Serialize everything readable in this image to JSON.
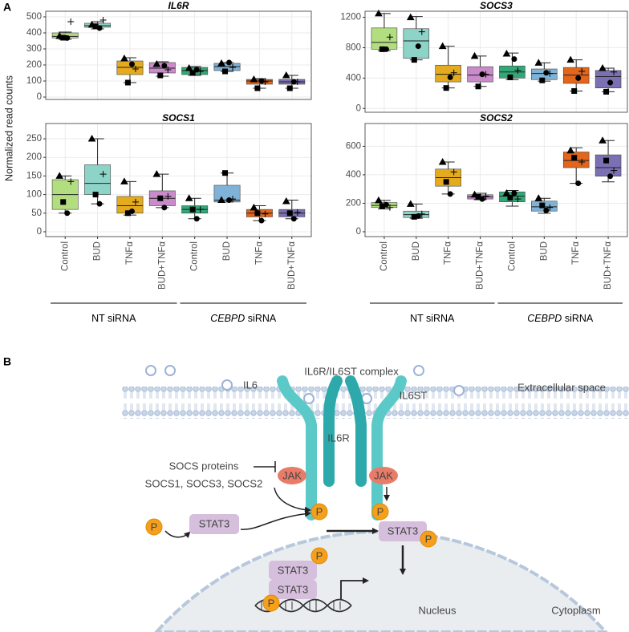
{
  "panel_a": {
    "label": "A",
    "y_label": "Normalized read counts"
  },
  "chart_data": [
    {
      "type": "box",
      "title": "IL6R",
      "ylim": [
        -15,
        535
      ],
      "yticks": [
        0,
        100,
        200,
        300,
        400,
        500
      ],
      "grid": true,
      "point_shapes": [
        "triangle",
        "square",
        "circle",
        "plus"
      ],
      "boxes": [
        {
          "color": "#b3de7f",
          "min": 360,
          "q1": 368,
          "median": 378,
          "q3": 400,
          "max": 405,
          "points": [
            380,
            370,
            368,
            470
          ]
        },
        {
          "color": "#8ed3c7",
          "min": 425,
          "q1": 435,
          "median": 445,
          "q3": 460,
          "max": 470,
          "points": [
            450,
            440,
            430,
            480
          ]
        },
        {
          "color": "#e5ab1f",
          "min": 90,
          "q1": 140,
          "median": 185,
          "q3": 225,
          "max": 245,
          "points": [
            240,
            90,
            205,
            175
          ]
        },
        {
          "color": "#c98bc9",
          "min": 130,
          "q1": 150,
          "median": 180,
          "q3": 215,
          "max": 220,
          "points": [
            205,
            135,
            195,
            170
          ]
        },
        {
          "color": "#32a878",
          "min": 135,
          "q1": 140,
          "median": 165,
          "q3": 185,
          "max": 190,
          "points": [
            180,
            150,
            170,
            160
          ]
        },
        {
          "color": "#7fb2d6",
          "min": 160,
          "q1": 165,
          "median": 190,
          "q3": 210,
          "max": 215,
          "points": [
            210,
            160,
            215,
            185
          ]
        },
        {
          "color": "#e3661c",
          "min": 55,
          "q1": 80,
          "median": 100,
          "q3": 110,
          "max": 115,
          "points": [
            110,
            55,
            100,
            95
          ]
        },
        {
          "color": "#7c70b4",
          "min": 55,
          "q1": 80,
          "median": 95,
          "q3": 110,
          "max": 135,
          "points": [
            135,
            55,
            95,
            95
          ]
        }
      ]
    },
    {
      "type": "box",
      "title": "SOCS3",
      "ylim": [
        -50,
        1280
      ],
      "yticks": [
        0,
        400,
        800,
        1200
      ],
      "grid": true,
      "point_shapes": [
        "triangle",
        "square",
        "circle",
        "plus"
      ],
      "boxes": [
        {
          "color": "#b3de7f",
          "min": 760,
          "q1": 780,
          "median": 870,
          "q3": 1060,
          "max": 1250,
          "points": [
            1250,
            780,
            780,
            940
          ]
        },
        {
          "color": "#8ed3c7",
          "min": 640,
          "q1": 660,
          "median": 890,
          "q3": 1050,
          "max": 1210,
          "points": [
            1200,
            640,
            820,
            1010
          ]
        },
        {
          "color": "#e5ab1f",
          "min": 270,
          "q1": 350,
          "median": 450,
          "q3": 570,
          "max": 820,
          "points": [
            820,
            270,
            410,
            470
          ]
        },
        {
          "color": "#c98bc9",
          "min": 290,
          "q1": 350,
          "median": 440,
          "q3": 550,
          "max": 690,
          "points": [
            690,
            290,
            450,
            450
          ]
        },
        {
          "color": "#32a878",
          "min": 380,
          "q1": 400,
          "median": 480,
          "q3": 560,
          "max": 730,
          "points": [
            720,
            410,
            650,
            500
          ]
        },
        {
          "color": "#7fb2d6",
          "min": 360,
          "q1": 380,
          "median": 460,
          "q3": 520,
          "max": 600,
          "points": [
            600,
            370,
            470,
            460
          ]
        },
        {
          "color": "#e3661c",
          "min": 230,
          "q1": 330,
          "median": 440,
          "q3": 540,
          "max": 640,
          "points": [
            640,
            230,
            400,
            490
          ]
        },
        {
          "color": "#7c70b4",
          "min": 220,
          "q1": 270,
          "median": 420,
          "q3": 500,
          "max": 530,
          "points": [
            530,
            220,
            340,
            480
          ]
        }
      ]
    },
    {
      "type": "box",
      "title": "SOCS1",
      "ylim": [
        -13,
        291
      ],
      "yticks": [
        0,
        50,
        100,
        150,
        200,
        250
      ],
      "grid": true,
      "point_shapes": [
        "triangle",
        "square",
        "circle",
        "plus"
      ],
      "categories": [
        "Control",
        "BUD",
        "TNFα",
        "BUD+TNFα",
        "Control",
        "BUD",
        "TNFα",
        "BUD+TNFα"
      ],
      "groups": [
        {
          "name": "NT siRNA"
        },
        {
          "gene": "CEBPD",
          "name": "siRNA"
        }
      ],
      "boxes": [
        {
          "color": "#b3de7f",
          "min": 50,
          "q1": 60,
          "median": 100,
          "q3": 140,
          "max": 150,
          "points": [
            150,
            80,
            50,
            135
          ]
        },
        {
          "color": "#8ed3c7",
          "min": 75,
          "q1": 100,
          "median": 130,
          "q3": 180,
          "max": 250,
          "points": [
            250,
            100,
            75,
            155
          ]
        },
        {
          "color": "#e5ab1f",
          "min": 45,
          "q1": 50,
          "median": 70,
          "q3": 95,
          "max": 135,
          "points": [
            135,
            50,
            55,
            80
          ]
        },
        {
          "color": "#c98bc9",
          "min": 65,
          "q1": 70,
          "median": 90,
          "q3": 110,
          "max": 155,
          "points": [
            155,
            90,
            65,
            95
          ]
        },
        {
          "color": "#32a878",
          "min": 35,
          "q1": 50,
          "median": 60,
          "q3": 70,
          "max": 90,
          "points": [
            90,
            60,
            35,
            60
          ]
        },
        {
          "color": "#7fb2d6",
          "min": 80,
          "q1": 80,
          "median": 85,
          "q3": 125,
          "max": 158,
          "points": [
            85,
            158,
            85,
            88
          ]
        },
        {
          "color": "#e3661c",
          "min": 30,
          "q1": 40,
          "median": 50,
          "q3": 60,
          "max": 70,
          "points": [
            65,
            50,
            30,
            48
          ]
        },
        {
          "color": "#7c70b4",
          "min": 35,
          "q1": 40,
          "median": 50,
          "q3": 60,
          "max": 85,
          "points": [
            82,
            50,
            35,
            52
          ]
        }
      ]
    },
    {
      "type": "box",
      "title": "SOCS2",
      "ylim": [
        -34,
        760
      ],
      "yticks": [
        0,
        200,
        400,
        600
      ],
      "grid": true,
      "point_shapes": [
        "triangle",
        "square",
        "circle",
        "plus"
      ],
      "categories": [
        "Control",
        "BUD",
        "TNFα",
        "BUD+TNFα",
        "Control",
        "BUD",
        "TNFα",
        "BUD+TNFα"
      ],
      "groups": [
        {
          "name": "NT siRNA"
        },
        {
          "gene": "CEBPD",
          "name": "siRNA"
        }
      ],
      "boxes": [
        {
          "color": "#b3de7f",
          "min": 160,
          "q1": 170,
          "median": 185,
          "q3": 205,
          "max": 220,
          "points": [
            220,
            180,
            190,
            170
          ]
        },
        {
          "color": "#8ed3c7",
          "min": 95,
          "q1": 100,
          "median": 120,
          "q3": 145,
          "max": 195,
          "points": [
            195,
            105,
            110,
            125
          ]
        },
        {
          "color": "#e5ab1f",
          "min": 265,
          "q1": 320,
          "median": 380,
          "q3": 440,
          "max": 490,
          "points": [
            490,
            350,
            265,
            420
          ]
        },
        {
          "color": "#c98bc9",
          "min": 225,
          "q1": 230,
          "median": 245,
          "q3": 260,
          "max": 270,
          "points": [
            260,
            245,
            230,
            250
          ]
        },
        {
          "color": "#32a878",
          "min": 180,
          "q1": 210,
          "median": 250,
          "q3": 280,
          "max": 290,
          "points": [
            270,
            240,
            270,
            230
          ]
        },
        {
          "color": "#7fb2d6",
          "min": 130,
          "q1": 145,
          "median": 175,
          "q3": 215,
          "max": 235,
          "points": [
            235,
            185,
            150,
            170
          ]
        },
        {
          "color": "#e3661c",
          "min": 340,
          "q1": 450,
          "median": 500,
          "q3": 560,
          "max": 590,
          "points": [
            570,
            520,
            340,
            490
          ]
        },
        {
          "color": "#7c70b4",
          "min": 350,
          "q1": 390,
          "median": 450,
          "q3": 540,
          "max": 640,
          "points": [
            640,
            500,
            390,
            430
          ]
        }
      ]
    }
  ],
  "panel_b": {
    "label": "B",
    "complex": "IL6R/IL6ST complex",
    "ligand": "IL6",
    "extracellular": "Extracellular space",
    "il6st": "IL6ST",
    "il6r": "IL6R",
    "jak": [
      "JAK",
      "JAK"
    ],
    "socs_title": "SOCS proteins",
    "socs_list": "SOCS1, SOCS3, SOCS2",
    "phospho": [
      "P",
      "P",
      "P",
      "P",
      "P",
      "P"
    ],
    "stat3": [
      "STAT3",
      "STAT3",
      "STAT3",
      "STAT3"
    ],
    "nucleus": "Nucleus",
    "cytoplasm": "Cytoplasm"
  }
}
